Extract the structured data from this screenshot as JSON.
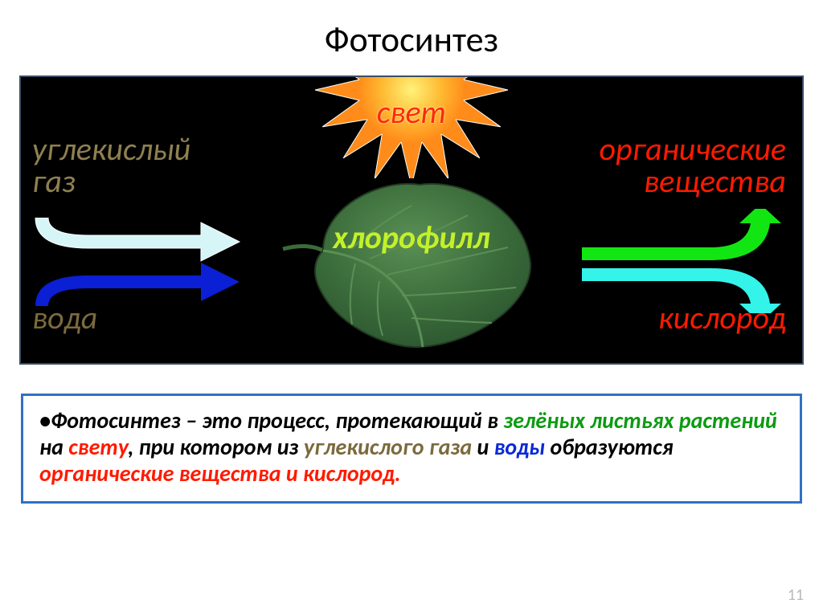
{
  "title": "Фотосинтез",
  "diagram": {
    "background_color": "#000000",
    "border_color": "#3b4e65",
    "labels": {
      "light": {
        "text": "свет",
        "color": "#ff2a00"
      },
      "co2": {
        "text": "углекислый\nгаз",
        "color": "#8f8050"
      },
      "water": {
        "text": "вода",
        "color": "#7b6a3d"
      },
      "organic": {
        "text": "органические\nвещества",
        "color": "#ff1a00"
      },
      "oxygen": {
        "text": "кислород",
        "color": "#ff1a00"
      },
      "chlorophyll": {
        "text": "хлорофилл",
        "color": "#c4f02a"
      }
    },
    "sun": {
      "core_color": "#fff27a",
      "mid_color": "#ffbb33",
      "ray_color": "#ff8c1a"
    },
    "leaf": {
      "fill": "#3a6b3a",
      "darker": "#2c5530",
      "vein": "#5a8f55"
    },
    "arrows_left": {
      "top": {
        "fill": "#d6f5f7",
        "stroke": "#ffffff"
      },
      "bottom": {
        "fill": "#0b1fd4",
        "stroke": "#0b1fd4"
      }
    },
    "arrows_right": {
      "top": {
        "fill": "#12e612",
        "stroke": "#12e612"
      },
      "bottom": {
        "fill": "#34f3e9",
        "stroke": "#34f3e9"
      }
    }
  },
  "definition": {
    "parts": [
      {
        "cls": "def-black",
        "text": "•Фотосинтез – это процесс, протекающий в "
      },
      {
        "cls": "def-green",
        "text": "зелёных листьях растений"
      },
      {
        "cls": "def-black",
        "text": " на "
      },
      {
        "cls": "def-red",
        "text": "свету"
      },
      {
        "cls": "def-black",
        "text": ", при котором из "
      },
      {
        "cls": "def-brown",
        "text": "углекислого газа "
      },
      {
        "cls": "def-black",
        "text": "и "
      },
      {
        "cls": "def-blue",
        "text": "воды "
      },
      {
        "cls": "def-black",
        "text": "образуются "
      },
      {
        "cls": "def-red",
        "text": "органические вещества и кислород."
      }
    ]
  },
  "slide_number": "11"
}
